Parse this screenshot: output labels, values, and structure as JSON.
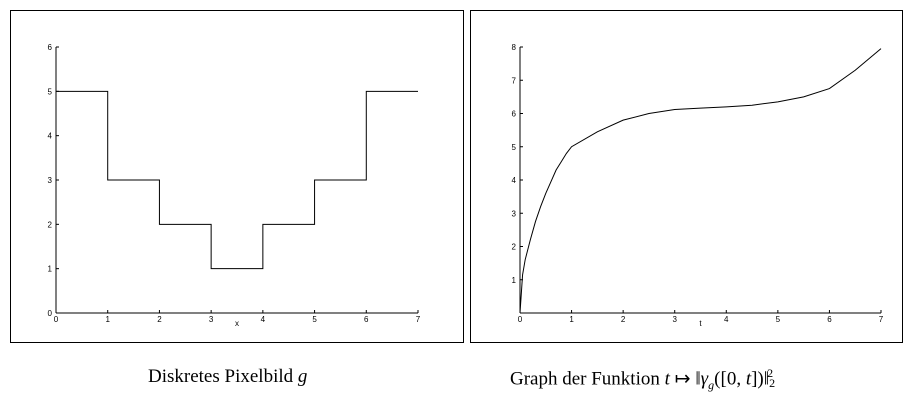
{
  "chart_data": [
    {
      "type": "line",
      "title": "",
      "caption": "Diskretes Pixelbild g",
      "caption_text": "Diskretes Pixelbild ",
      "caption_var": "g",
      "xlabel": "x",
      "ylabel": "",
      "xlim": [
        0,
        7
      ],
      "ylim": [
        0,
        6
      ],
      "xticks": [
        "0",
        "1",
        "2",
        "3",
        "4",
        "5",
        "6",
        "7"
      ],
      "yticks": [
        "0",
        "1",
        "2",
        "3",
        "4",
        "5",
        "6"
      ],
      "step": true,
      "series": [
        {
          "x": [
            0,
            1,
            1,
            2,
            2,
            3,
            3,
            4,
            4,
            5,
            5,
            6,
            6,
            7
          ],
          "y": [
            5,
            5,
            3,
            3,
            2,
            2,
            1,
            1,
            2,
            2,
            3,
            3,
            5,
            5
          ]
        }
      ],
      "grid": false
    },
    {
      "type": "line",
      "title": "",
      "caption": "Graph der Funktion t ↦ ‖γg([0,t])‖₂²",
      "caption_text": "Graph der Funktion ",
      "xlabel": "t",
      "ylabel": "",
      "xlim": [
        0,
        7
      ],
      "ylim": [
        0,
        8
      ],
      "xticks": [
        "0",
        "1",
        "2",
        "3",
        "4",
        "5",
        "6",
        "7"
      ],
      "yticks": [
        "1",
        "2",
        "3",
        "4",
        "5",
        "6",
        "7",
        "8"
      ],
      "series": [
        {
          "x": [
            0,
            0.05,
            0.1,
            0.2,
            0.3,
            0.4,
            0.5,
            0.6,
            0.7,
            0.8,
            0.9,
            1.0,
            1.5,
            2.0,
            2.5,
            3.0,
            3.5,
            4.0,
            4.5,
            5.0,
            5.5,
            6.0,
            6.5,
            7.0
          ],
          "y": [
            0,
            1.15,
            1.6,
            2.2,
            2.75,
            3.2,
            3.6,
            3.95,
            4.3,
            4.55,
            4.8,
            5.0,
            5.45,
            5.8,
            6.0,
            6.12,
            6.16,
            6.2,
            6.25,
            6.35,
            6.5,
            6.75,
            7.3,
            7.95
          ]
        }
      ],
      "grid": false
    }
  ]
}
